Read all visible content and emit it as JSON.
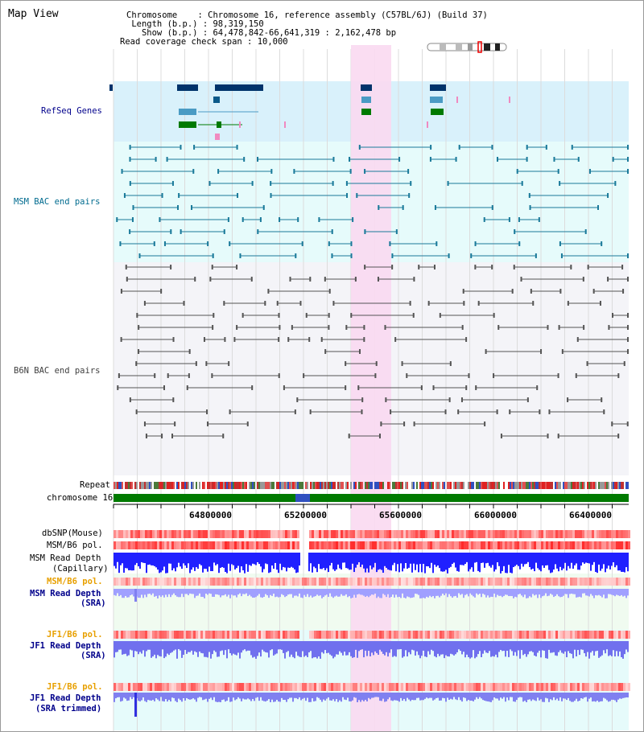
{
  "header": {
    "title": "Map View",
    "chromosome_label": "Chromosome",
    "chromosome_value": "Chromosome 16, reference assembly (C57BL/6J) (Build 37)",
    "length_label": "Length (b.p.)",
    "length_value": "98,319,150",
    "show_label": "Show (b.p.)",
    "show_value": "64,478,842-66,641,319 : 2,162,478 bp",
    "coverage_label": "Read coverage check span",
    "coverage_value": "10,000"
  },
  "tracks": {
    "refseq": "RefSeq Genes",
    "msm_bac": "MSM BAC end pairs",
    "b6n_bac": "B6N BAC end pairs",
    "repeat": "Repeat",
    "chromosome": "chromosome 16",
    "dbsnp": "dbSNP(Mouse)",
    "msm_b6_pol": "MSM/B6 pol.",
    "msm_read_depth_1": "MSM Read Depth",
    "msm_read_depth_1b": "(Capillary)",
    "msm_b6_pol_2": "MSM/B6 pol.",
    "msm_read_depth_2": "MSM Read Depth",
    "msm_read_depth_2b": "(SRA)",
    "jf1_b6_pol": "JF1/B6 pol.",
    "jf1_read_depth": "JF1 Read Depth",
    "jf1_read_depth_b": "(SRA)",
    "jf1_b6_pol_2": "JF1/B6 pol.",
    "jf1_read_depth_2": "JF1 Read Depth",
    "jf1_read_depth_2b": "(SRA trimmed)"
  },
  "axis": {
    "ticks": [
      "64800000",
      "65200000",
      "65600000",
      "66000000",
      "66400000"
    ]
  },
  "colors": {
    "highlight": "#f9d9f1",
    "refseq_bg": "#d9f1fb",
    "msm_bg": "#e6fbfb",
    "b6n_bg": "#f4f4f8",
    "label_blue": "#00008b",
    "label_teal": "#006b8f",
    "label_orange": "#e8a000",
    "chromosome_green": "#007a00"
  }
}
